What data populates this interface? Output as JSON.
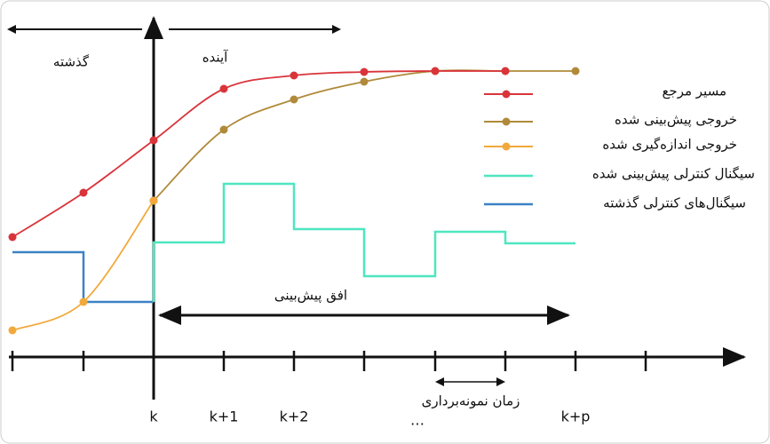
{
  "past_label": "گذشته",
  "future_label": "آینده",
  "legend": [
    "مسیر مرجع",
    "خروجی پیش‌بینی شده",
    "خروجی اندازه‌گیری شده",
    "سیگنال کنترلی پیش‌بینی شده",
    "سیگنال‌های کنترلی گذشته"
  ],
  "horizon_label": "افق پیش‌بینی",
  "sampling_label": "زمان نمونه‌برداری",
  "x_labels": [
    "k",
    "k+1",
    "k+2",
    "…",
    "k+p"
  ]
}
